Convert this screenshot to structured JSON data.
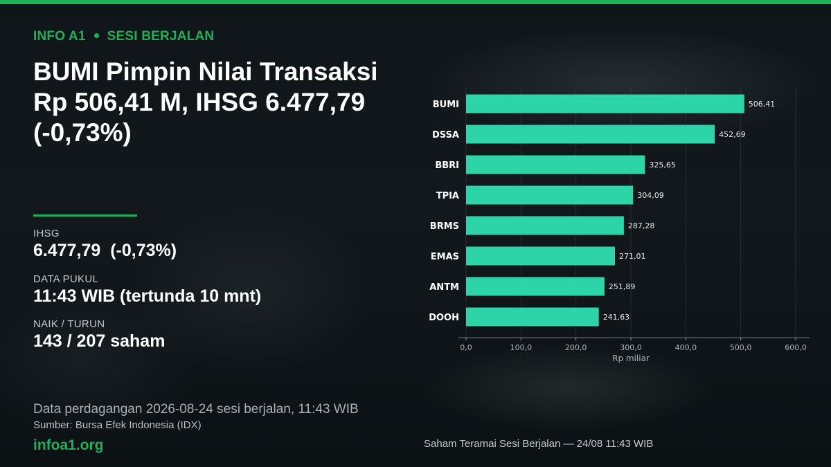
{
  "header": {
    "brand_tag": "INFO A1",
    "session_tag": "SESI BERJALAN",
    "headline_lines": [
      "BUMI Pimpin Nilai Transaksi",
      "Rp 506,41 M, IHSG 6.477,79",
      "(-0,73%)"
    ]
  },
  "stats": {
    "ihsg_label": "IHSG",
    "ihsg_value": "6.477,79  (-0,73%)",
    "time_label": "DATA PUKUL",
    "time_value": "11:43 WIB (tertunda 10 mnt)",
    "breadth_label": "NAIK / TURUN",
    "breadth_value": "143 / 207 saham"
  },
  "footer": {
    "note": "Data perdagangan 2026-08-24 sesi berjalan, 11:43 WIB",
    "source": "Sumber: Bursa Efek Indonesia (IDX)",
    "site": "infoa1.org",
    "caption": "Saham Teramai Sesi Berjalan — 24/08 11:43 WIB"
  },
  "colors": {
    "accent": "#1fb15a",
    "bar": "#2dd4a8",
    "background": "#0d1216"
  },
  "chart_data": {
    "type": "bar",
    "orientation": "horizontal",
    "categories": [
      "BUMI",
      "DSSA",
      "BBRI",
      "TPIA",
      "BRMS",
      "EMAS",
      "ANTM",
      "DOOH"
    ],
    "values": [
      506.41,
      452.69,
      325.65,
      304.09,
      287.28,
      271.01,
      251.89,
      241.63
    ],
    "value_labels": [
      "506,41",
      "452,69",
      "325,65",
      "304,09",
      "287,28",
      "271,01",
      "251,89",
      "241,63"
    ],
    "xticks": [
      "0,0",
      "100,0",
      "200,0",
      "300,0",
      "400,0",
      "500,0",
      "600,0"
    ],
    "xlabel": "Rp miliar",
    "xlim": [
      0,
      600
    ],
    "grid": true
  }
}
